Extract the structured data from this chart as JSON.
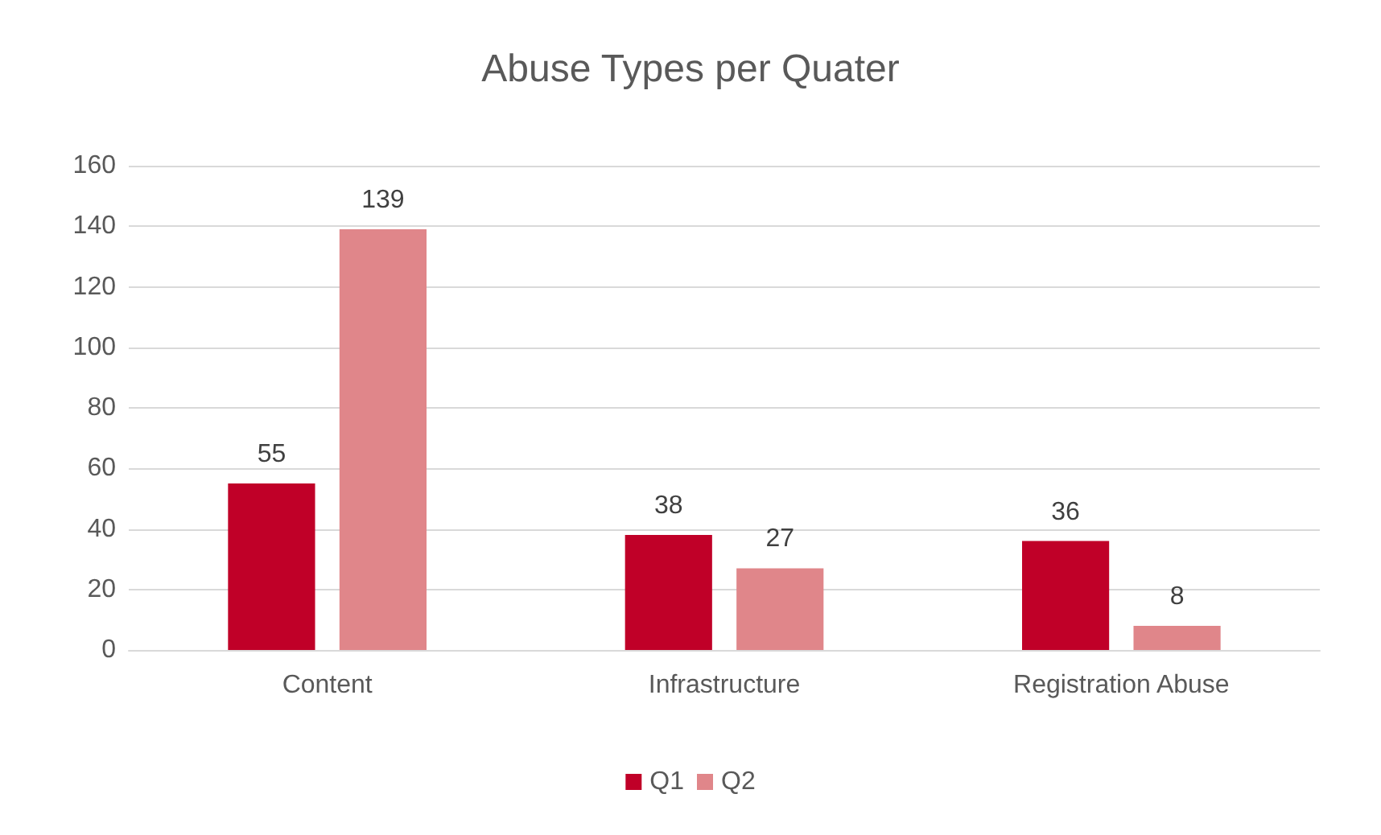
{
  "chart_data": {
    "type": "bar",
    "title": "Abuse Types per Quater",
    "categories": [
      "Content",
      "Infrastructure",
      "Registration Abuse"
    ],
    "series": [
      {
        "name": "Q1",
        "color": "#c00028",
        "values": [
          55,
          38,
          36
        ]
      },
      {
        "name": "Q2",
        "color": "#e0868a",
        "values": [
          139,
          27,
          8
        ]
      }
    ],
    "ylim": [
      0,
      160
    ],
    "yticks": [
      0,
      20,
      40,
      60,
      80,
      100,
      120,
      140,
      160
    ],
    "grid": "y",
    "legend": "bottom",
    "data_labels": true
  }
}
